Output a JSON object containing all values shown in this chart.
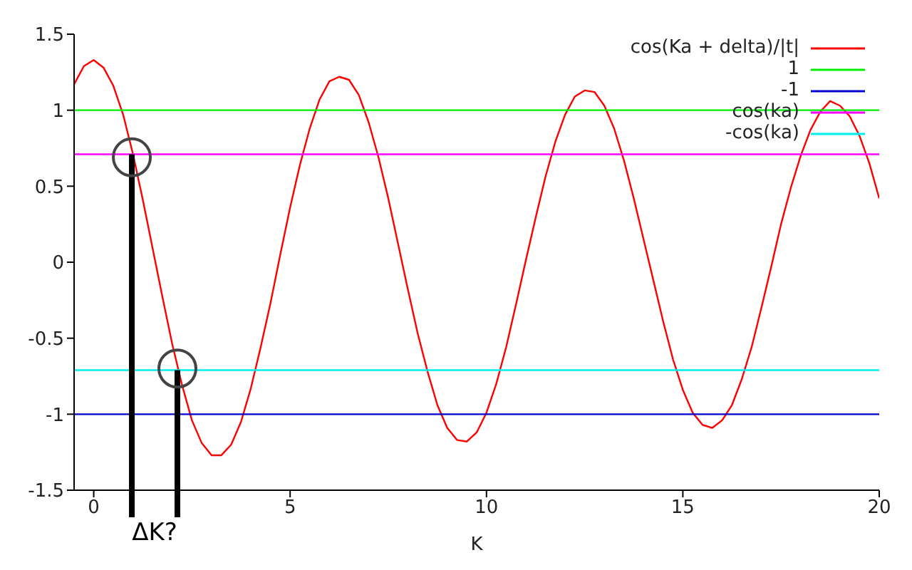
{
  "chart_data": {
    "type": "line",
    "xlabel": "K",
    "annotations": [
      "ΔK?"
    ],
    "xlim": [
      -0.5,
      20
    ],
    "xticks": [
      0,
      5,
      10,
      15,
      20
    ],
    "ylim": [
      -1.5,
      1.5
    ],
    "yticks": [
      -1.5,
      -1,
      -0.5,
      0,
      0.5,
      1,
      1.5
    ],
    "ref_lines": [
      {
        "axis": "x",
        "value": 0.97,
        "color": "#000000"
      },
      {
        "axis": "x",
        "value": 2.13,
        "color": "#000000"
      }
    ],
    "grid": false,
    "legend": "top right",
    "marker": "none",
    "line_style": "solid",
    "series": [
      {
        "name": "cos(Ka + delta)/|t|",
        "color": "#ff0000",
        "x": [
          -0.5,
          -0.25,
          0,
          0.25,
          0.5,
          0.75,
          1,
          1.25,
          1.5,
          1.75,
          2,
          2.25,
          2.5,
          2.75,
          3,
          3.25,
          3.5,
          3.75,
          4,
          4.25,
          4.5,
          4.75,
          5,
          5.25,
          5.5,
          5.75,
          6,
          6.25,
          6.5,
          6.75,
          7,
          7.25,
          7.5,
          7.75,
          8,
          8.25,
          8.5,
          8.75,
          9,
          9.25,
          9.5,
          9.75,
          10,
          10.25,
          10.5,
          10.75,
          11,
          11.25,
          11.5,
          11.75,
          12,
          12.25,
          12.5,
          12.75,
          13,
          13.25,
          13.5,
          13.75,
          14,
          14.25,
          14.5,
          14.75,
          15,
          15.25,
          15.5,
          15.75,
          16,
          16.25,
          16.5,
          16.75,
          17,
          17.25,
          17.5,
          17.75,
          18,
          18.25,
          18.5,
          18.75,
          19,
          19.25,
          19.5,
          19.75,
          20
        ],
        "values": [
          1.17,
          1.29,
          1.33,
          1.28,
          1.16,
          0.97,
          0.71,
          0.41,
          0.09,
          -0.23,
          -0.54,
          -0.81,
          -1.04,
          -1.19,
          -1.27,
          -1.27,
          -1.2,
          -1.05,
          -0.83,
          -0.56,
          -0.27,
          0.05,
          0.36,
          0.64,
          0.88,
          1.07,
          1.19,
          1.22,
          1.2,
          1.1,
          0.92,
          0.69,
          0.42,
          0.12,
          -0.18,
          -0.47,
          -0.72,
          -0.94,
          -1.09,
          -1.17,
          -1.18,
          -1.12,
          -0.99,
          -0.8,
          -0.56,
          -0.28,
          0.01,
          0.29,
          0.56,
          0.79,
          0.97,
          1.09,
          1.13,
          1.12,
          1.03,
          0.88,
          0.67,
          0.42,
          0.15,
          -0.12,
          -0.39,
          -0.64,
          -0.84,
          -0.99,
          -1.07,
          -1.09,
          -1.04,
          -0.94,
          -0.77,
          -0.56,
          -0.3,
          -0.03,
          0.25,
          0.49,
          0.7,
          0.87,
          0.99,
          1.06,
          1.03,
          0.96,
          0.83,
          0.65,
          0.42
        ]
      },
      {
        "name": "1",
        "color": "#00ee00",
        "x": [
          -0.5,
          20
        ],
        "values": [
          1,
          1
        ]
      },
      {
        "name": "-1",
        "color": "#0000cc",
        "x": [
          -0.5,
          20
        ],
        "values": [
          -1,
          -1
        ]
      },
      {
        "name": "cos(ka)",
        "color": "#ff00ff",
        "x": [
          -0.5,
          20
        ],
        "values": [
          0.71,
          0.71
        ]
      },
      {
        "name": "-cos(ka)",
        "color": "#00eeee",
        "x": [
          -0.5,
          20
        ],
        "values": [
          -0.71,
          -0.71
        ]
      }
    ]
  }
}
